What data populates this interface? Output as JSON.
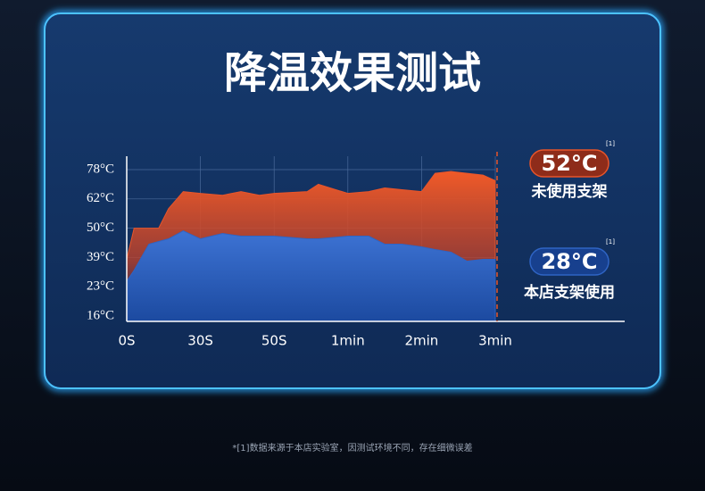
{
  "chart_data": {
    "type": "area",
    "title": "降温效果测试",
    "x": [
      0,
      3,
      9,
      13,
      17,
      23,
      30,
      36,
      41,
      46,
      50,
      54.5,
      56,
      60,
      77,
      90,
      104,
      120,
      131,
      144,
      157,
      170,
      180
    ],
    "series": [
      {
        "name": "未使用支架",
        "color": "#e8552a",
        "values": [
          38,
          50,
          50,
          50,
          58,
          66,
          65,
          64,
          66,
          64,
          65,
          66,
          70,
          65,
          66,
          68,
          67,
          66,
          76,
          77,
          76,
          75,
          72
        ]
      },
      {
        "name": "本店支架使用",
        "color": "#2f64c4",
        "values": [
          26,
          32,
          44,
          45,
          46,
          49,
          46,
          48,
          47,
          47,
          47,
          46,
          46,
          47,
          47,
          44,
          44,
          43,
          42,
          41,
          37,
          38,
          38
        ]
      }
    ],
    "xlim": [
      0,
      180
    ],
    "xticks": [
      {
        "value": 0,
        "label": "0S"
      },
      {
        "value": 30,
        "label": "30S"
      },
      {
        "value": 50,
        "label": "50S"
      },
      {
        "value": 60,
        "label": "1min"
      },
      {
        "value": 120,
        "label": "2min"
      },
      {
        "value": 180,
        "label": "3min"
      }
    ],
    "ylim": [
      16,
      78
    ],
    "yticks": [
      {
        "value": 16,
        "label": "16°C"
      },
      {
        "value": 23,
        "label": "23°C"
      },
      {
        "value": 39,
        "label": "39°C"
      },
      {
        "value": 50,
        "label": "50°C"
      },
      {
        "value": 62,
        "label": "62°C"
      },
      {
        "value": 78,
        "label": "78°C"
      }
    ],
    "grid": true,
    "annotations": [
      {
        "text": "52°C",
        "note": "[1]",
        "color": "#8e2c1a"
      },
      {
        "text": "28°C",
        "note": "[1]",
        "color": "#17408e"
      }
    ],
    "footnote": "*[1]数据来源于本店实验室，因测试环境不同，存在细微误差"
  }
}
